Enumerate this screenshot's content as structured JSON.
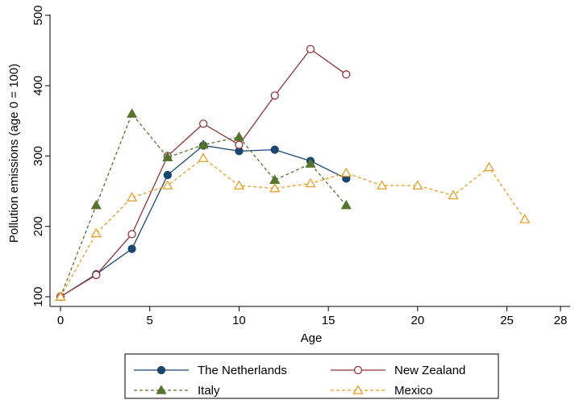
{
  "chart_data": {
    "type": "line",
    "title": "",
    "xlabel": "Age",
    "ylabel": "Pollution emissions (age 0 = 100)",
    "xlim": [
      0,
      28
    ],
    "ylim": [
      100,
      500
    ],
    "x_ticks": [
      0,
      5,
      10,
      15,
      20,
      25,
      28
    ],
    "y_ticks": [
      100,
      200,
      300,
      400,
      500
    ],
    "grid": false,
    "legend": "bottom",
    "series": [
      {
        "name": "The Netherlands",
        "color": "#1a476f",
        "dash": "solid",
        "marker": "filled-circle",
        "x": [
          0,
          2,
          4,
          6,
          8,
          10,
          12,
          14,
          16
        ],
        "y": [
          100,
          132,
          168,
          273,
          315,
          307,
          309,
          293,
          268
        ]
      },
      {
        "name": "New Zealand",
        "color": "#90353b",
        "dash": "solid",
        "marker": "hollow-circle",
        "x": [
          0,
          2,
          4,
          6,
          8,
          10,
          12,
          14,
          16
        ],
        "y": [
          100,
          131,
          189,
          300,
          346,
          316,
          386,
          452,
          416
        ]
      },
      {
        "name": "Italy",
        "color": "#55752f",
        "dash": "dashed",
        "marker": "filled-triangle",
        "x": [
          0,
          2,
          4,
          6,
          8,
          10,
          12,
          14,
          16
        ],
        "y": [
          100,
          230,
          360,
          298,
          316,
          327,
          266,
          289,
          230
        ]
      },
      {
        "name": "Mexico",
        "color": "#e69e25",
        "dash": "dashed",
        "marker": "hollow-triangle",
        "x": [
          0,
          2,
          4,
          6,
          8,
          10,
          12,
          14,
          16,
          18,
          20,
          22,
          24,
          26
        ],
        "y": [
          100,
          190,
          241,
          258,
          297,
          258,
          254,
          261,
          276,
          258,
          258,
          244,
          284,
          210
        ]
      }
    ]
  }
}
